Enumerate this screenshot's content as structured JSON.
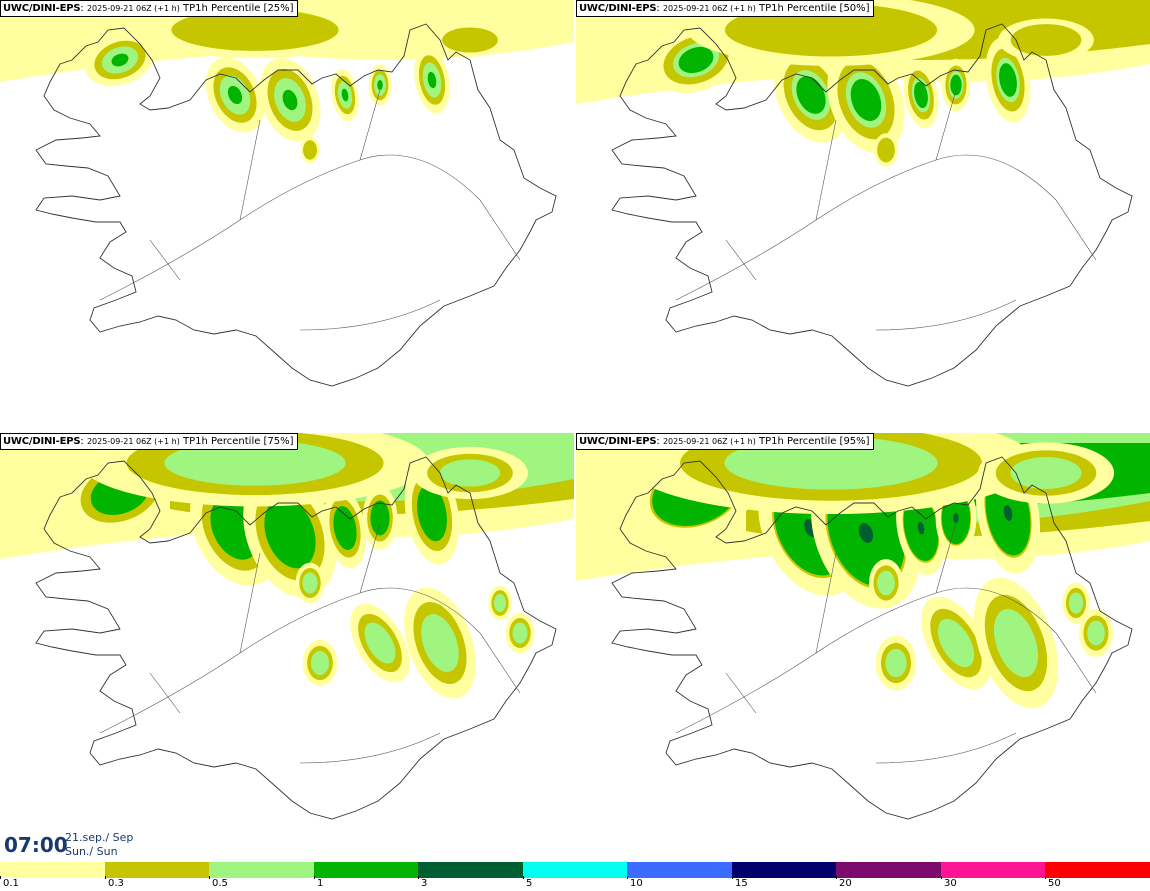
{
  "panels": [
    {
      "model": "UWC/DINI-EPS",
      "run": "2025-09-21 06Z (+1 h)",
      "field": "TP1h Percentile [25%]",
      "intensity": 1
    },
    {
      "model": "UWC/DINI-EPS",
      "run": "2025-09-21 06Z (+1 h)",
      "field": "TP1h Percentile [50%]",
      "intensity": 2
    },
    {
      "model": "UWC/DINI-EPS",
      "run": "2025-09-21 06Z (+1 h)",
      "field": "TP1h Percentile [75%]",
      "intensity": 3
    },
    {
      "model": "UWC/DINI-EPS",
      "run": "2025-09-21 06Z (+1 h)",
      "field": "TP1h Percentile [95%]",
      "intensity": 4
    }
  ],
  "time": {
    "clock": "07:00",
    "date_line": "21.sep./ Sep",
    "day_line": "Sun./ Sun"
  },
  "colorbar": {
    "colors": [
      "#ffff9f",
      "#c6c600",
      "#a0f580",
      "#00b400",
      "#005f32",
      "#00ffee",
      "#3b6cff",
      "#00006b",
      "#7d0a6e",
      "#ff1493",
      "#ff0000"
    ],
    "labels": [
      "0.1",
      "0.3",
      "0.5",
      "1",
      "3",
      "5",
      "10",
      "15",
      "20",
      "30",
      "50"
    ]
  },
  "map_colors": {
    "land_outline": "#333333",
    "roads": "#555555"
  }
}
